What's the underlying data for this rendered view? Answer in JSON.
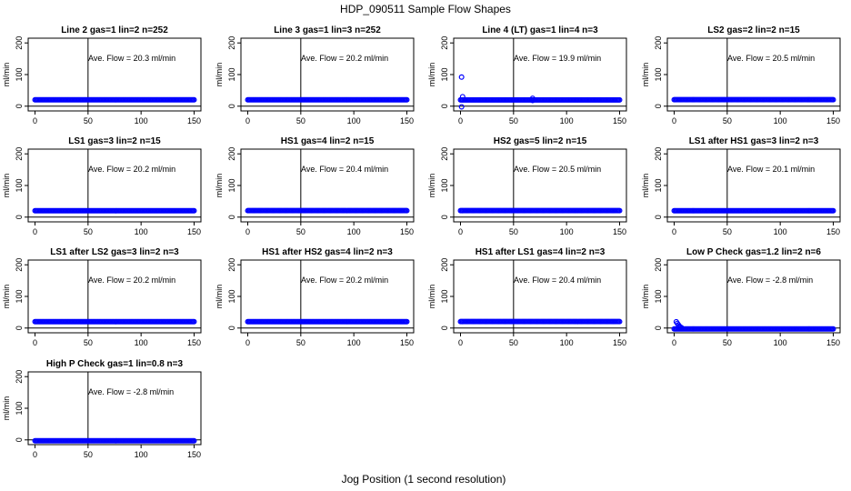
{
  "figure": {
    "title": "HDP_090511  Sample Flow Shapes",
    "xlabel": "Jog Position (1 second resolution)"
  },
  "chart_data": [
    {
      "type": "scatter",
      "title": "Line 2 gas=1 lin=2 n=252",
      "annotation": "Ave. Flow = 20.3 ml/min",
      "ylabel": "ml/min",
      "xlim": [
        0,
        150
      ],
      "ylim": [
        -15,
        215
      ],
      "xticks": [
        0,
        50,
        100,
        150
      ],
      "yticks": [
        0,
        100,
        200
      ],
      "vline": 50,
      "hline": 0,
      "flow": 20.3,
      "outliers": []
    },
    {
      "type": "scatter",
      "title": "Line 3 gas=1 lin=3 n=252",
      "annotation": "Ave. Flow = 20.2 ml/min",
      "ylabel": "ml/min",
      "xlim": [
        0,
        150
      ],
      "ylim": [
        -15,
        215
      ],
      "xticks": [
        0,
        50,
        100,
        150
      ],
      "yticks": [
        0,
        100,
        200
      ],
      "vline": 50,
      "hline": 0,
      "flow": 20.2,
      "outliers": []
    },
    {
      "type": "scatter",
      "title": "Line 4 (LT) gas=1 lin=4 n=3",
      "annotation": "Ave. Flow = 19.9 ml/min",
      "ylabel": "ml/min",
      "xlim": [
        0,
        150
      ],
      "ylim": [
        -15,
        215
      ],
      "xticks": [
        0,
        50,
        100,
        150
      ],
      "yticks": [
        0,
        100,
        200
      ],
      "vline": 50,
      "hline": 0,
      "flow": 19.9,
      "outliers": [
        [
          1,
          92
        ],
        [
          2,
          30
        ],
        [
          1,
          -2
        ],
        [
          68,
          25
        ],
        [
          68,
          18
        ]
      ]
    },
    {
      "type": "scatter",
      "title": "LS2 gas=2 lin=2 n=15",
      "annotation": "Ave. Flow = 20.5 ml/min",
      "ylabel": "ml/min",
      "xlim": [
        0,
        150
      ],
      "ylim": [
        -15,
        215
      ],
      "xticks": [
        0,
        50,
        100,
        150
      ],
      "yticks": [
        0,
        100,
        200
      ],
      "vline": 50,
      "hline": 0,
      "flow": 20.5,
      "outliers": []
    },
    {
      "type": "scatter",
      "title": "LS1 gas=3 lin=2 n=15",
      "annotation": "Ave. Flow = 20.2 ml/min",
      "ylabel": "ml/min",
      "xlim": [
        0,
        150
      ],
      "ylim": [
        -15,
        215
      ],
      "xticks": [
        0,
        50,
        100,
        150
      ],
      "yticks": [
        0,
        100,
        200
      ],
      "vline": 50,
      "hline": 0,
      "flow": 20.2,
      "outliers": []
    },
    {
      "type": "scatter",
      "title": "HS1 gas=4 lin=2 n=15",
      "annotation": "Ave. Flow = 20.4 ml/min",
      "ylabel": "ml/min",
      "xlim": [
        0,
        150
      ],
      "ylim": [
        -15,
        215
      ],
      "xticks": [
        0,
        50,
        100,
        150
      ],
      "yticks": [
        0,
        100,
        200
      ],
      "vline": 50,
      "hline": 0,
      "flow": 20.4,
      "outliers": []
    },
    {
      "type": "scatter",
      "title": "HS2 gas=5 lin=2 n=15",
      "annotation": "Ave. Flow = 20.5 ml/min",
      "ylabel": "ml/min",
      "xlim": [
        0,
        150
      ],
      "ylim": [
        -15,
        215
      ],
      "xticks": [
        0,
        50,
        100,
        150
      ],
      "yticks": [
        0,
        100,
        200
      ],
      "vline": 50,
      "hline": 0,
      "flow": 20.5,
      "outliers": []
    },
    {
      "type": "scatter",
      "title": "LS1 after HS1 gas=3 lin=2 n=3",
      "annotation": "Ave. Flow = 20.1 ml/min",
      "ylabel": "ml/min",
      "xlim": [
        0,
        150
      ],
      "ylim": [
        -15,
        215
      ],
      "xticks": [
        0,
        50,
        100,
        150
      ],
      "yticks": [
        0,
        100,
        200
      ],
      "vline": 50,
      "hline": 0,
      "flow": 20.1,
      "outliers": []
    },
    {
      "type": "scatter",
      "title": "LS1 after LS2 gas=3 lin=2 n=3",
      "annotation": "Ave. Flow = 20.2 ml/min",
      "ylabel": "ml/min",
      "xlim": [
        0,
        150
      ],
      "ylim": [
        -15,
        215
      ],
      "xticks": [
        0,
        50,
        100,
        150
      ],
      "yticks": [
        0,
        100,
        200
      ],
      "vline": 50,
      "hline": 0,
      "flow": 20.2,
      "outliers": []
    },
    {
      "type": "scatter",
      "title": "HS1 after HS2 gas=4 lin=2 n=3",
      "annotation": "Ave. Flow = 20.2 ml/min",
      "ylabel": "ml/min",
      "xlim": [
        0,
        150
      ],
      "ylim": [
        -15,
        215
      ],
      "xticks": [
        0,
        50,
        100,
        150
      ],
      "yticks": [
        0,
        100,
        200
      ],
      "vline": 50,
      "hline": 0,
      "flow": 20.2,
      "outliers": []
    },
    {
      "type": "scatter",
      "title": "HS1 after LS1 gas=4 lin=2 n=3",
      "annotation": "Ave. Flow = 20.4 ml/min",
      "ylabel": "ml/min",
      "xlim": [
        0,
        150
      ],
      "ylim": [
        -15,
        215
      ],
      "xticks": [
        0,
        50,
        100,
        150
      ],
      "yticks": [
        0,
        100,
        200
      ],
      "vline": 50,
      "hline": 0,
      "flow": 20.4,
      "outliers": []
    },
    {
      "type": "scatter",
      "title": "Low P Check gas=1.2 lin=2 n=6",
      "annotation": "Ave. Flow = -2.8 ml/min",
      "ylabel": "ml/min",
      "xlim": [
        0,
        150
      ],
      "ylim": [
        -15,
        215
      ],
      "xticks": [
        0,
        50,
        100,
        150
      ],
      "yticks": [
        0,
        100,
        200
      ],
      "vline": 50,
      "hline": 0,
      "flow": -2.8,
      "outliers": [
        [
          2,
          20
        ],
        [
          3,
          15
        ],
        [
          4,
          10
        ],
        [
          5,
          6
        ],
        [
          6,
          3
        ],
        [
          7,
          1
        ]
      ]
    },
    {
      "type": "scatter",
      "title": "High P Check gas=1 lin=0.8 n=3",
      "annotation": "Ave. Flow = -2.8 ml/min",
      "ylabel": "ml/min",
      "xlim": [
        0,
        150
      ],
      "ylim": [
        -15,
        215
      ],
      "xticks": [
        0,
        50,
        100,
        150
      ],
      "yticks": [
        0,
        100,
        200
      ],
      "vline": 50,
      "hline": 0,
      "flow": -2.8,
      "outliers": []
    }
  ],
  "colors": {
    "points": "#0000ff",
    "axes": "#000000"
  }
}
